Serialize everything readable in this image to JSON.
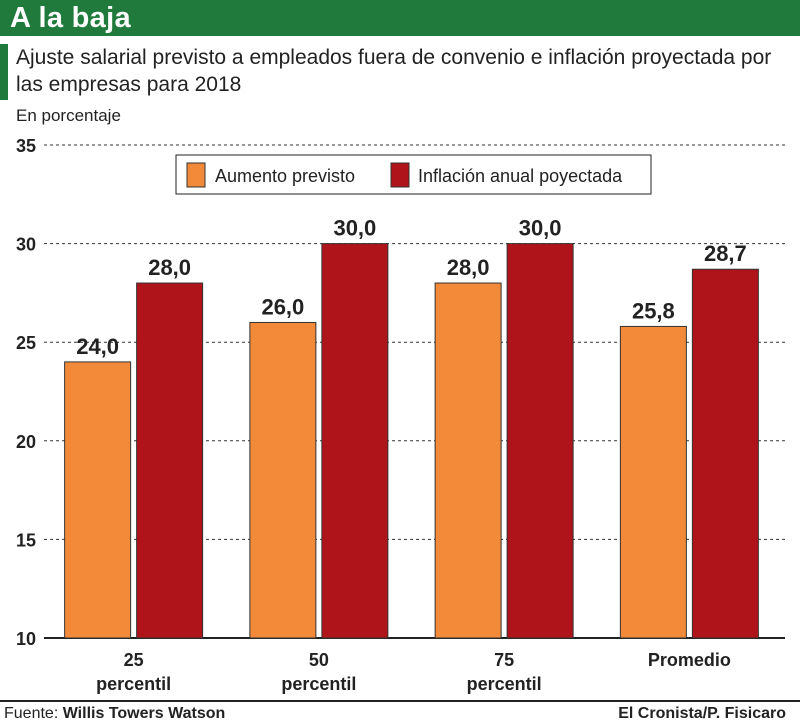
{
  "header": {
    "title": "A la baja"
  },
  "subtitle": "Ajuste salarial previsto a empleados fuera de convenio e inflación proyectada por las empresas para 2018",
  "unit_label": "En porcentaje",
  "footer": {
    "source_prefix": "Fuente:",
    "source_name": "Willis Towers Watson",
    "credit": "El Cronista/P. Fisicaro"
  },
  "colors": {
    "header": "#1f7a3c",
    "aumento": "#f28a3a",
    "inflacion": "#b0141b"
  },
  "chart_data": {
    "type": "bar",
    "title": "Ajuste salarial previsto a empleados fuera de convenio e inflación proyectada por las empresas para 2018",
    "ylabel": "En porcentaje",
    "xlabel": "",
    "ylim": [
      10,
      35
    ],
    "yticks": [
      "35",
      "30",
      "25",
      "20",
      "15",
      "10"
    ],
    "ytick_values": [
      35,
      30,
      25,
      20,
      15,
      10
    ],
    "grid": true,
    "legend_position": "top-center",
    "categories": [
      [
        "25",
        "percentil"
      ],
      [
        "50",
        "percentil"
      ],
      [
        "75",
        "percentil"
      ],
      [
        "Promedio"
      ]
    ],
    "series": [
      {
        "name": "Aumento previsto",
        "values": [
          24.0,
          26.0,
          28.0,
          25.8
        ],
        "labels": [
          "24,0",
          "26,0",
          "28,0",
          "25,8"
        ]
      },
      {
        "name": "Inflación anual poyectada",
        "values": [
          28.0,
          30.0,
          30.0,
          28.7
        ],
        "labels": [
          "28,0",
          "30,0",
          "30,0",
          "28,7"
        ]
      }
    ]
  }
}
